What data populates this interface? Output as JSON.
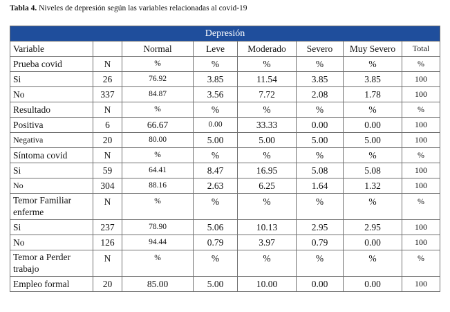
{
  "caption": {
    "label": "Tabla 4.",
    "text": "Niveles de depresión según las variables relacionadas al covid-19"
  },
  "table": {
    "band_title": "Depresión",
    "headers": [
      "Variable",
      "",
      "Normal",
      "Leve",
      "Moderado",
      "Severo",
      "Muy Severo",
      "Total"
    ],
    "rows": [
      [
        "Prueba covid",
        "N",
        "%",
        "%",
        "%",
        "%",
        "%",
        "%"
      ],
      [
        "Si",
        "26",
        "76.92",
        "3.85",
        "11.54",
        "3.85",
        "3.85",
        "100"
      ],
      [
        "No",
        "337",
        "84.87",
        "3.56",
        "7.72",
        "2.08",
        "1.78",
        "100"
      ],
      [
        "Resultado",
        "N",
        "%",
        "%",
        "%",
        "%",
        "%",
        "%"
      ],
      [
        "Positiva",
        "6",
        "66.67",
        "0.00",
        "33.33",
        "0.00",
        "0.00",
        "100"
      ],
      [
        "Negativa",
        "20",
        "80.00",
        "5.00",
        "5.00",
        "5.00",
        "5.00",
        "100"
      ],
      [
        "Síntoma covid",
        "N",
        "%",
        "%",
        "%",
        "%",
        "%",
        "%"
      ],
      [
        "Si",
        "59",
        "64.41",
        "8.47",
        "16.95",
        "5.08",
        "5.08",
        "100"
      ],
      [
        "No",
        "304",
        "88.16",
        "2.63",
        "6.25",
        "1.64",
        "1.32",
        "100"
      ],
      [
        "Temor Familiar enferme",
        "N",
        "%",
        "%",
        "%",
        "%",
        "%",
        "%"
      ],
      [
        "Si",
        "237",
        "78.90",
        "5.06",
        "10.13",
        "2.95",
        "2.95",
        "100"
      ],
      [
        "No",
        "126",
        "94.44",
        "0.79",
        "3.97",
        "0.79",
        "0.00",
        "100"
      ],
      [
        "Temor a Perder trabajo",
        "N",
        "%",
        "%",
        "%",
        "%",
        "%",
        "%"
      ],
      [
        "Empleo formal",
        "20",
        "85.00",
        "5.00",
        "10.00",
        "0.00",
        "0.00",
        "100"
      ]
    ]
  }
}
